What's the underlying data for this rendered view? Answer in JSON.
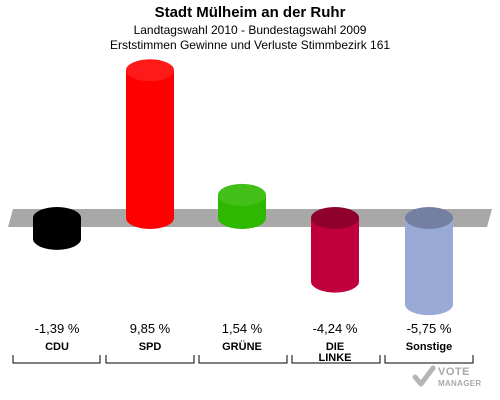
{
  "header": {
    "title": "Stadt Mülheim an der Ruhr",
    "subtitle": "Landtagswahl 2010 - Bundestagswahl 2009",
    "subtitle2": "Erststimmen Gewinne und Verluste Stimmbezirk 161"
  },
  "chart_data": {
    "type": "bar",
    "title": "Stadt Mülheim an der Ruhr",
    "categories": [
      "CDU",
      "SPD",
      "GRÜNE",
      "DIE LINKE",
      "Sonstige"
    ],
    "value_labels": [
      "-1,39 %",
      "9,85 %",
      "1,54 %",
      "-4,24 %",
      "-5,75 %"
    ],
    "values": [
      -1.39,
      9.85,
      1.54,
      -4.24,
      -5.75
    ],
    "colors": [
      "#000000",
      "#ff0000",
      "#2eb800",
      "#c0003c",
      "#9aaad6"
    ],
    "grid": false,
    "legend": "none"
  },
  "logo": {
    "line1": "VOTE",
    "line2": "MANAGER"
  }
}
